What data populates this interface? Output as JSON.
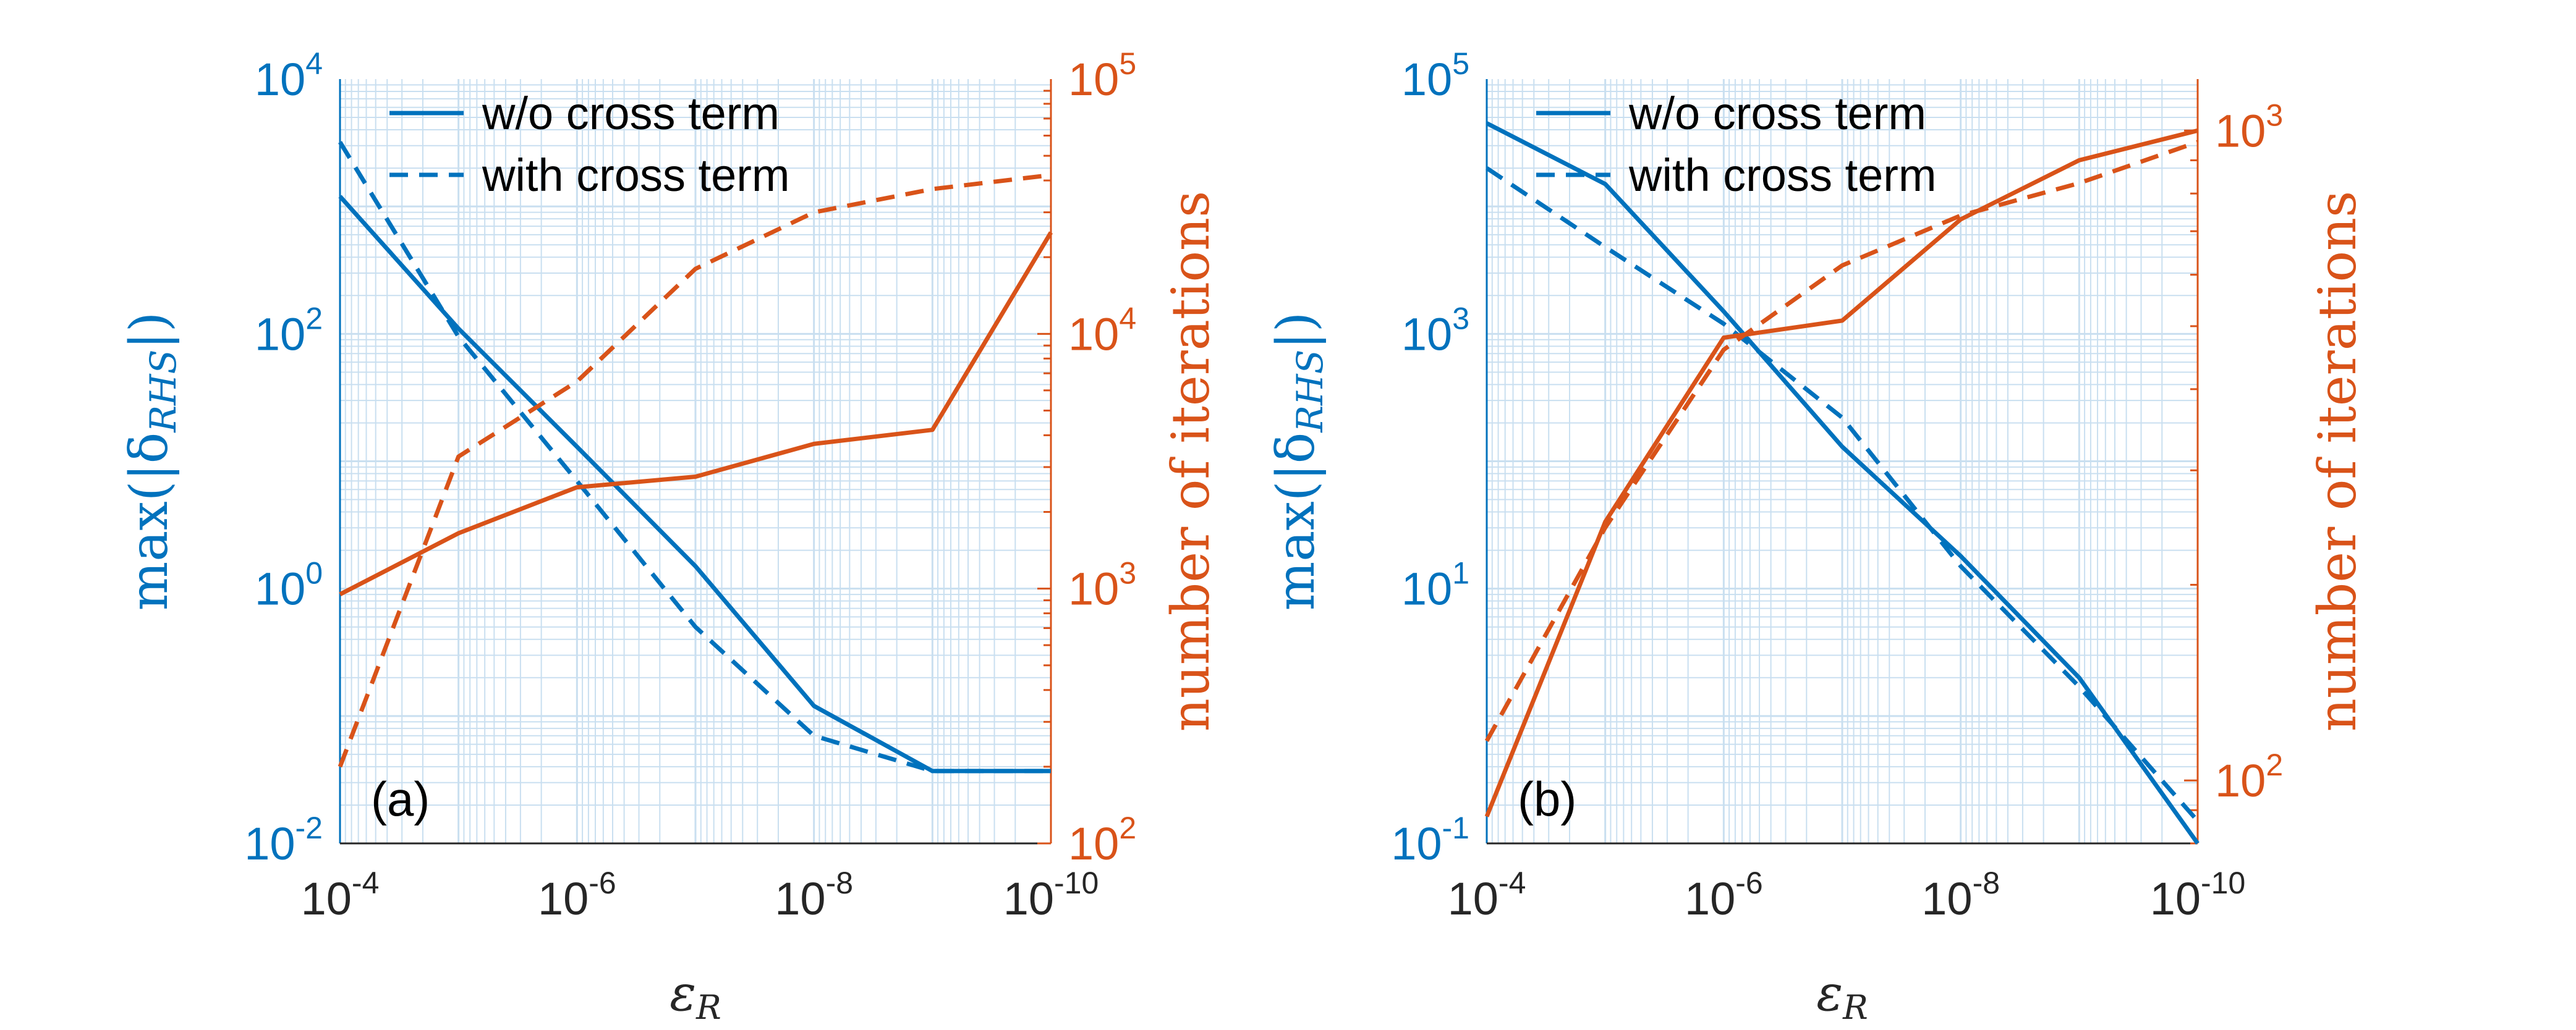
{
  "colors": {
    "left": "#0072BD",
    "right": "#D95319",
    "grid": "#c9dff0",
    "text": "#262626"
  },
  "chart_data": [
    {
      "type": "line",
      "panel_label": "(a)",
      "x": [
        0.0001,
        1e-05,
        1e-06,
        1e-07,
        1e-08,
        1e-09,
        1e-10
      ],
      "x_ticks": [
        {
          "base": "10",
          "exp": "-4"
        },
        {
          "base": "10",
          "exp": "-6"
        },
        {
          "base": "10",
          "exp": "-8"
        },
        {
          "base": "10",
          "exp": "-10"
        }
      ],
      "xlabel": {
        "main": "ε",
        "sub": "R"
      },
      "ylabel_left": {
        "prefix": "max(|δ",
        "sub": "RHS",
        "suffix": "|)"
      },
      "ylabel_right": "number of iterations",
      "ylim_left": [
        0.01,
        10000
      ],
      "ylim_right": [
        100,
        100000
      ],
      "y_ticks_left": [
        {
          "base": "10",
          "exp": "4"
        },
        {
          "base": "10",
          "exp": "2"
        },
        {
          "base": "10",
          "exp": "0"
        },
        {
          "base": "10",
          "exp": "-2"
        }
      ],
      "y_ticks_right": [
        {
          "base": "10",
          "exp": "5"
        },
        {
          "base": "10",
          "exp": "4"
        },
        {
          "base": "10",
          "exp": "3"
        },
        {
          "base": "10",
          "exp": "2"
        }
      ],
      "legend": [
        "w/o cross term",
        "with cross term"
      ],
      "series": [
        {
          "name": "w/o cross term",
          "axis": "left",
          "style": "solid",
          "values": [
            1200,
            110,
            13,
            1.5,
            0.12,
            0.037,
            0.037
          ]
        },
        {
          "name": "with cross term",
          "axis": "left",
          "style": "dashed",
          "values": [
            3200,
            95,
            7,
            0.5,
            0.07,
            0.037,
            0.037
          ]
        },
        {
          "name": "w/o cross term",
          "axis": "right",
          "style": "solid",
          "values": [
            950,
            1650,
            2500,
            2750,
            3700,
            4200,
            25000
          ]
        },
        {
          "name": "with cross term",
          "axis": "right",
          "style": "dashed",
          "values": [
            200,
            3300,
            6500,
            18000,
            30000,
            37000,
            42000
          ]
        }
      ]
    },
    {
      "type": "line",
      "panel_label": "(b)",
      "x": [
        0.0001,
        1e-05,
        1e-06,
        1e-07,
        1e-08,
        1e-09,
        1e-10
      ],
      "x_ticks": [
        {
          "base": "10",
          "exp": "-4"
        },
        {
          "base": "10",
          "exp": "-6"
        },
        {
          "base": "10",
          "exp": "-8"
        },
        {
          "base": "10",
          "exp": "-10"
        }
      ],
      "xlabel": {
        "main": "ε",
        "sub": "R"
      },
      "ylabel_left": {
        "prefix": "max(|δ",
        "sub": "RHS",
        "suffix": "|)"
      },
      "ylabel_right": "number of iterations",
      "ylim_left": [
        0.1,
        100000
      ],
      "ylim_right": [
        80,
        1200
      ],
      "y_ticks_left": [
        {
          "base": "10",
          "exp": "5"
        },
        {
          "base": "10",
          "exp": "3"
        },
        {
          "base": "10",
          "exp": "1"
        },
        {
          "base": "10",
          "exp": "-1"
        }
      ],
      "y_ticks_right": [
        {
          "base": "10",
          "exp": "3"
        },
        {
          "base": "10",
          "exp": "2"
        }
      ],
      "legend": [
        "w/o cross term",
        "with cross term"
      ],
      "series": [
        {
          "name": "w/o cross term",
          "axis": "left",
          "style": "solid",
          "values": [
            45000,
            15000,
            1500,
            130,
            18,
            2,
            0.1
          ]
        },
        {
          "name": "with cross term",
          "axis": "left",
          "style": "dashed",
          "values": [
            20000,
            4800,
            1200,
            220,
            15,
            1.7,
            0.15
          ]
        },
        {
          "name": "w/o cross term",
          "axis": "right",
          "style": "solid",
          "values": [
            88,
            250,
            480,
            510,
            730,
            900,
            1000
          ]
        },
        {
          "name": "with cross term",
          "axis": "right",
          "style": "dashed",
          "values": [
            115,
            245,
            460,
            620,
            740,
            830,
            960
          ]
        }
      ]
    }
  ]
}
